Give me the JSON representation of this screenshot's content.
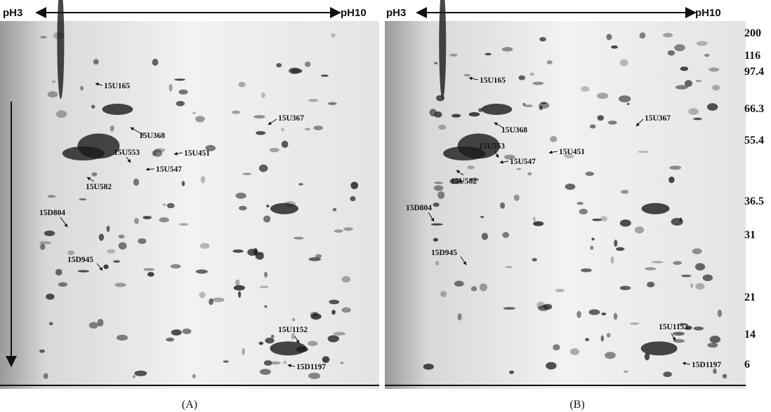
{
  "panels": [
    {
      "label": "(A)",
      "ph_start": "pH3",
      "ph_end": "pH10",
      "spots": [
        "15U165",
        "15U368",
        "15U367",
        "15U553",
        "15U451",
        "15U547",
        "15U582",
        "15D804",
        "15D945",
        "15U1152",
        "15D1197"
      ]
    },
    {
      "label": "(B)",
      "ph_start": "pH3",
      "ph_end": "pH10",
      "spots": [
        "15U165",
        "15U368",
        "15U367",
        "15U553",
        "15U451",
        "15U547",
        "15U582",
        "15D804",
        "15D945",
        "15U1152",
        "15D1197"
      ]
    }
  ],
  "mw_markers": [
    "200",
    "116",
    "97.4",
    "66.3",
    "55.4",
    "36.5",
    "31",
    "21",
    "14",
    "6"
  ]
}
